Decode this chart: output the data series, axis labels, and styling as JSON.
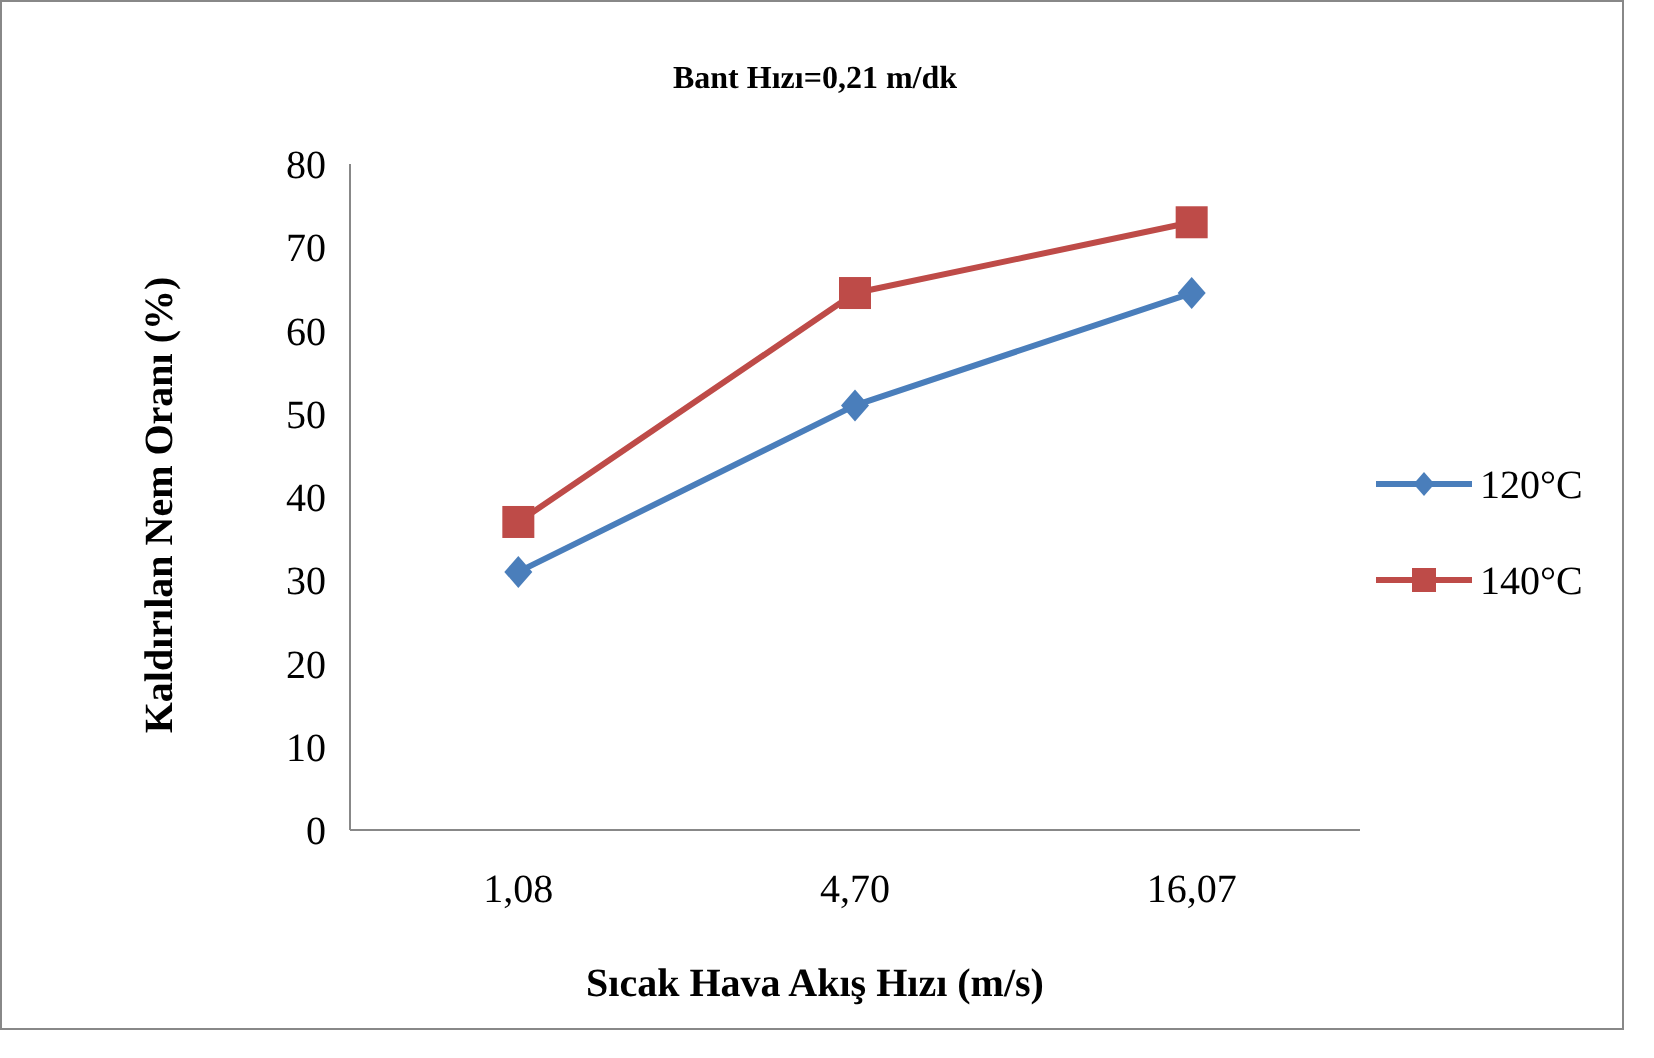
{
  "chart_data": {
    "type": "line",
    "title": "Bant Hızı=0,21 m/dk",
    "xlabel": "Sıcak Hava Akış Hızı (m/s)",
    "ylabel": "Kaldırılan Nem Oranı (%)",
    "categories": [
      "1,08",
      "4,70",
      "16,07"
    ],
    "series": [
      {
        "name": "120°C",
        "color": "#4a7ebb",
        "marker": "diamond",
        "values": [
          31,
          51,
          64.5
        ]
      },
      {
        "name": "140°C",
        "color": "#be4b48",
        "marker": "square",
        "values": [
          37,
          64.5,
          73
        ]
      }
    ],
    "ylim": [
      0,
      80
    ],
    "yticks": [
      0,
      10,
      20,
      30,
      40,
      50,
      60,
      70,
      80
    ],
    "grid": false,
    "legend": "right",
    "line_style": "solid"
  }
}
